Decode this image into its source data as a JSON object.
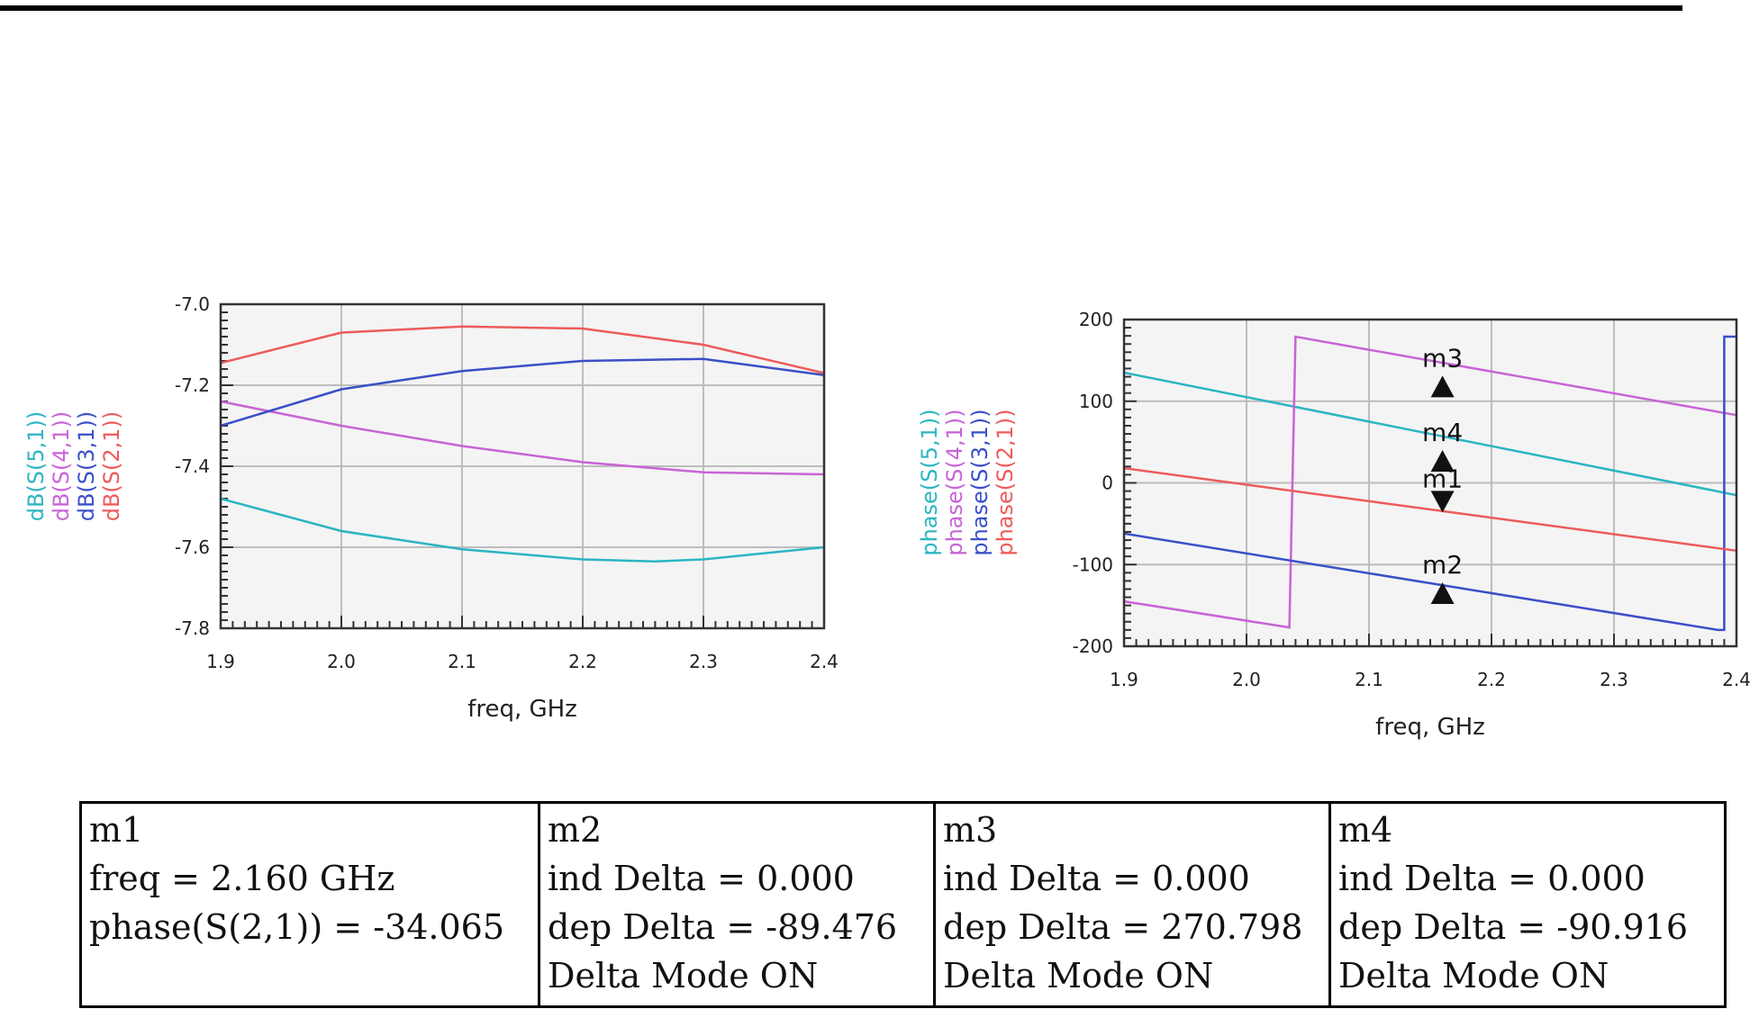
{
  "colors": {
    "s51": "#2bb5c2",
    "s41": "#c864d6",
    "s31": "#3a4fc8",
    "s21": "#ee5a5a",
    "grid": "#bdbdbd"
  },
  "chart_data": [
    {
      "type": "line",
      "xlabel": "freq, GHz",
      "ylabel": [
        "dB(S(5,1))",
        "dB(S(4,1))",
        "dB(S(3,1))",
        "dB(S(2,1))"
      ],
      "xlim": [
        1.9,
        2.4
      ],
      "ylim": [
        -7.8,
        -7.0
      ],
      "xticks": [
        "1.9",
        "2.0",
        "2.1",
        "2.2",
        "2.3",
        "2.4"
      ],
      "yticks": [
        "-7.0",
        "-7.2",
        "-7.4",
        "-7.6",
        "-7.8"
      ],
      "grid": true,
      "series": [
        {
          "name": "dB(S(5,1))",
          "color": "#2bb5c2",
          "x": [
            1.9,
            2.0,
            2.1,
            2.2,
            2.26,
            2.3,
            2.4
          ],
          "y": [
            -7.48,
            -7.56,
            -7.605,
            -7.63,
            -7.635,
            -7.63,
            -7.6
          ]
        },
        {
          "name": "dB(S(4,1))",
          "color": "#c864d6",
          "x": [
            1.9,
            2.0,
            2.1,
            2.2,
            2.3,
            2.4
          ],
          "y": [
            -7.24,
            -7.3,
            -7.35,
            -7.39,
            -7.415,
            -7.42
          ]
        },
        {
          "name": "dB(S(3,1))",
          "color": "#3a4fc8",
          "x": [
            1.9,
            2.0,
            2.1,
            2.2,
            2.3,
            2.4
          ],
          "y": [
            -7.3,
            -7.21,
            -7.165,
            -7.14,
            -7.135,
            -7.175
          ]
        },
        {
          "name": "dB(S(2,1))",
          "color": "#ee5a5a",
          "x": [
            1.9,
            2.0,
            2.1,
            2.2,
            2.3,
            2.4
          ],
          "y": [
            -7.145,
            -7.07,
            -7.055,
            -7.06,
            -7.1,
            -7.17
          ]
        }
      ]
    },
    {
      "type": "line",
      "xlabel": "freq, GHz",
      "ylabel": [
        "phase(S(5,1))",
        "phase(S(4,1))",
        "phase(S(3,1))",
        "phase(S(2,1))"
      ],
      "xlim": [
        1.9,
        2.4
      ],
      "ylim": [
        -200,
        200
      ],
      "xticks": [
        "1.9",
        "2.0",
        "2.1",
        "2.2",
        "2.3",
        "2.4"
      ],
      "yticks": [
        "200",
        "100",
        "0",
        "-100",
        "-200"
      ],
      "grid": true,
      "series": [
        {
          "name": "phase(S(5,1))",
          "color": "#2bb5c2",
          "x": [
            1.9,
            2.4
          ],
          "y": [
            135,
            -15
          ]
        },
        {
          "name": "phase(S(4,1))",
          "color": "#c864d6",
          "x": [
            1.9,
            2.035,
            2.035,
            2.04,
            2.4
          ],
          "y": [
            -145,
            -177,
            -177,
            179,
            83
          ]
        },
        {
          "name": "phase(S(3,1))",
          "color": "#3a4fc8",
          "x": [
            1.9,
            2.385,
            2.39,
            2.39,
            2.4
          ],
          "y": [
            -62,
            -180,
            -180,
            179,
            179
          ]
        },
        {
          "name": "phase(S(2,1))",
          "color": "#ee5a5a",
          "x": [
            1.9,
            2.4
          ],
          "y": [
            18,
            -83
          ]
        }
      ],
      "markers": [
        {
          "name": "m3",
          "x": 2.16,
          "y": 129,
          "dir": "up"
        },
        {
          "name": "m4",
          "x": 2.16,
          "y": 38,
          "dir": "up"
        },
        {
          "name": "m1",
          "x": 2.16,
          "y": -34.065,
          "dir": "down"
        },
        {
          "name": "m2",
          "x": 2.16,
          "y": -124,
          "dir": "up"
        }
      ]
    }
  ],
  "marker_table": [
    {
      "lines": [
        "m1",
        "freq = 2.160 GHz",
        "phase(S(2,1)) = -34.065",
        ""
      ]
    },
    {
      "lines": [
        "m2",
        "ind Delta = 0.000",
        "dep Delta = -89.476",
        "Delta Mode ON"
      ]
    },
    {
      "lines": [
        "m3",
        "ind Delta = 0.000",
        "dep Delta = 270.798",
        "Delta Mode ON"
      ]
    },
    {
      "lines": [
        "m4",
        "ind Delta = 0.000",
        "dep Delta = -90.916",
        "Delta Mode ON"
      ]
    }
  ]
}
